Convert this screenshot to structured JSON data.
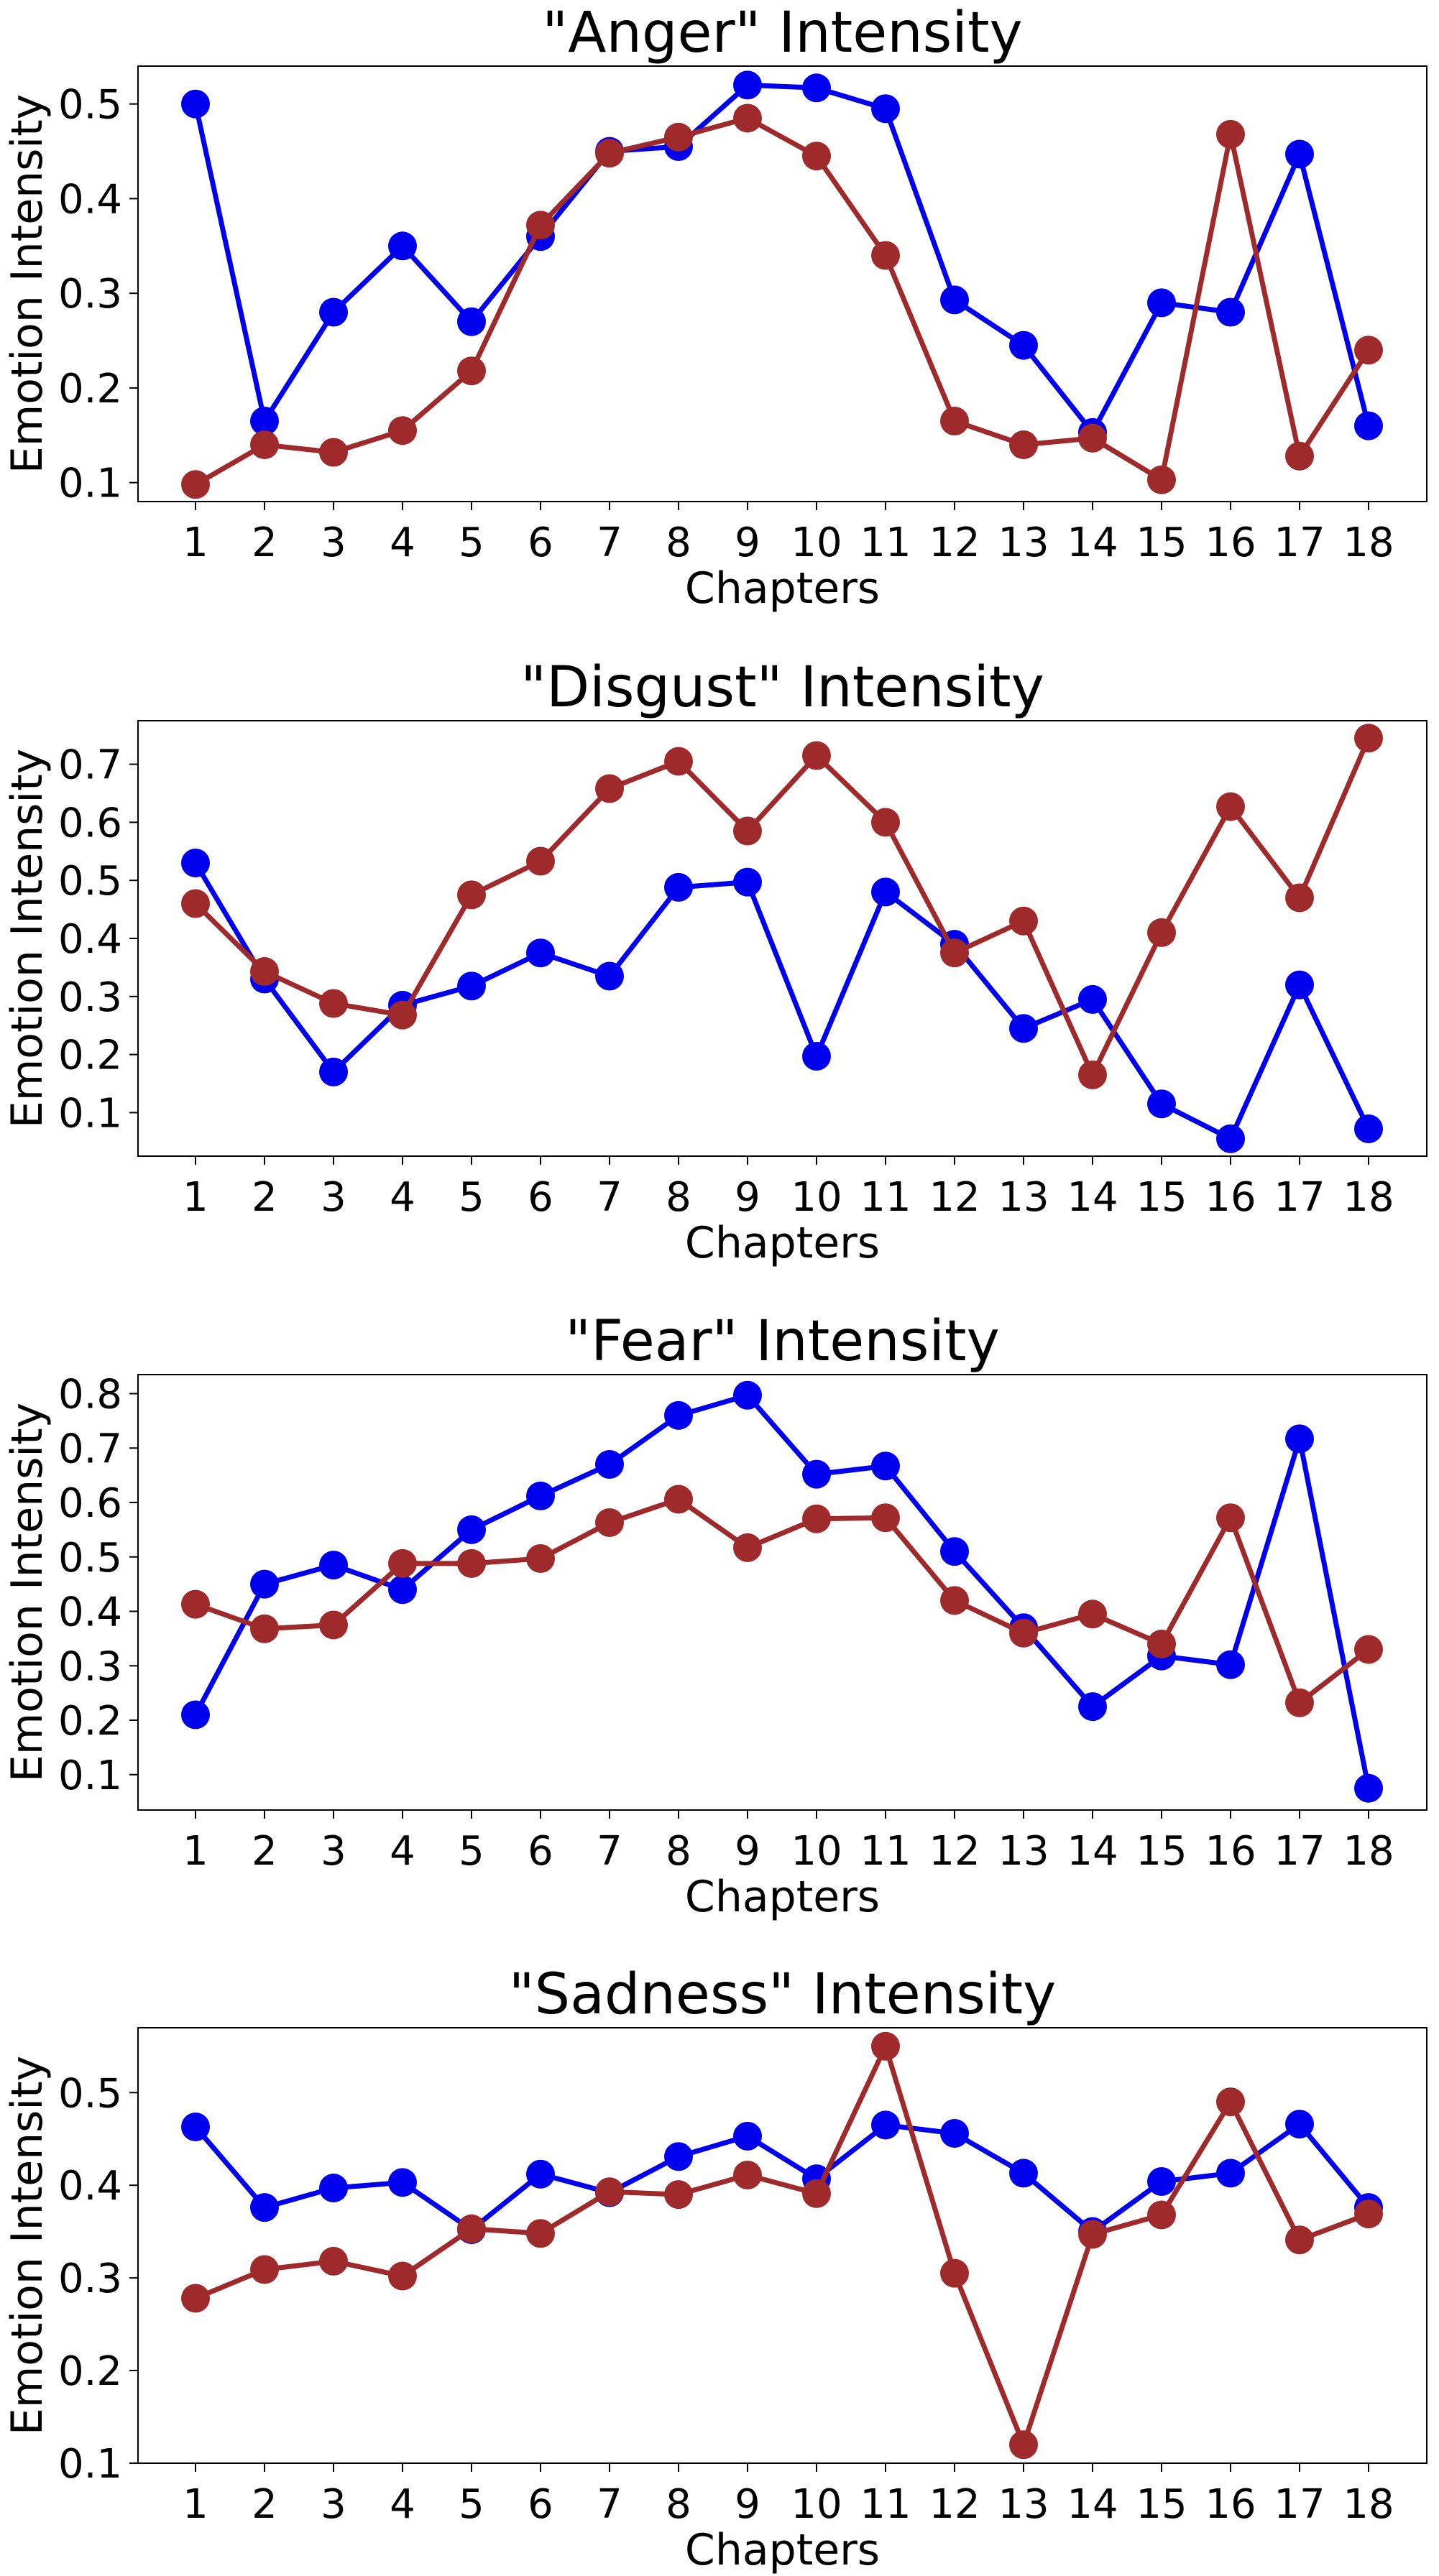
{
  "chart_data": [
    {
      "type": "line",
      "title": "\"Anger\" Intensity",
      "xlabel": "Chapters",
      "ylabel": "Emotion Intensity",
      "categories": [
        "1",
        "2",
        "3",
        "4",
        "5",
        "6",
        "7",
        "8",
        "9",
        "10",
        "11",
        "12",
        "13",
        "14",
        "15",
        "16",
        "17",
        "18"
      ],
      "ylim": [
        0.08,
        0.54
      ],
      "yticks": [
        "0.1",
        "0.2",
        "0.3",
        "0.4",
        "0.5"
      ],
      "grid": false,
      "series": [
        {
          "color": "#0000ee",
          "values": [
            0.5,
            0.165,
            0.28,
            0.35,
            0.27,
            0.36,
            0.45,
            0.455,
            0.52,
            0.517,
            0.495,
            0.293,
            0.245,
            0.153,
            0.29,
            0.28,
            0.447,
            0.16
          ]
        },
        {
          "color": "#9e2a2b",
          "values": [
            0.098,
            0.14,
            0.132,
            0.155,
            0.218,
            0.372,
            0.448,
            0.465,
            0.485,
            0.445,
            0.34,
            0.165,
            0.14,
            0.147,
            0.103,
            0.468,
            0.128,
            0.24
          ]
        }
      ]
    },
    {
      "type": "line",
      "title": "\"Disgust\" Intensity",
      "xlabel": "Chapters",
      "ylabel": "Emotion Intensity",
      "categories": [
        "1",
        "2",
        "3",
        "4",
        "5",
        "6",
        "7",
        "8",
        "9",
        "10",
        "11",
        "12",
        "13",
        "14",
        "15",
        "16",
        "17",
        "18"
      ],
      "ylim": [
        0.025,
        0.775
      ],
      "yticks": [
        "0.1",
        "0.2",
        "0.3",
        "0.4",
        "0.5",
        "0.6",
        "0.7"
      ],
      "grid": false,
      "series": [
        {
          "color": "#0000ee",
          "values": [
            0.53,
            0.33,
            0.17,
            0.285,
            0.318,
            0.375,
            0.335,
            0.488,
            0.497,
            0.197,
            0.48,
            0.39,
            0.245,
            0.295,
            0.115,
            0.055,
            0.32,
            0.072
          ]
        },
        {
          "color": "#9e2a2b",
          "values": [
            0.46,
            0.343,
            0.288,
            0.268,
            0.475,
            0.533,
            0.658,
            0.705,
            0.585,
            0.715,
            0.6,
            0.375,
            0.43,
            0.165,
            0.41,
            0.627,
            0.47,
            0.745
          ]
        }
      ]
    },
    {
      "type": "line",
      "title": "\"Fear\" Intensity",
      "xlabel": "Chapters",
      "ylabel": "Emotion Intensity",
      "categories": [
        "1",
        "2",
        "3",
        "4",
        "5",
        "6",
        "7",
        "8",
        "9",
        "10",
        "11",
        "12",
        "13",
        "14",
        "15",
        "16",
        "17",
        "18"
      ],
      "ylim": [
        0.035,
        0.835
      ],
      "yticks": [
        "0.1",
        "0.2",
        "0.3",
        "0.4",
        "0.5",
        "0.6",
        "0.7",
        "0.8"
      ],
      "grid": false,
      "series": [
        {
          "color": "#0000ee",
          "values": [
            0.21,
            0.45,
            0.485,
            0.44,
            0.55,
            0.612,
            0.67,
            0.76,
            0.797,
            0.652,
            0.667,
            0.51,
            0.37,
            0.225,
            0.318,
            0.302,
            0.717,
            0.075
          ]
        },
        {
          "color": "#9e2a2b",
          "values": [
            0.413,
            0.368,
            0.375,
            0.488,
            0.488,
            0.497,
            0.563,
            0.606,
            0.517,
            0.57,
            0.572,
            0.42,
            0.36,
            0.395,
            0.34,
            0.572,
            0.232,
            0.33
          ]
        }
      ]
    },
    {
      "type": "line",
      "title": "\"Sadness\" Intensity",
      "xlabel": "Chapters",
      "ylabel": "Emotion Intensity",
      "categories": [
        "1",
        "2",
        "3",
        "4",
        "5",
        "6",
        "7",
        "8",
        "9",
        "10",
        "11",
        "12",
        "13",
        "14",
        "15",
        "16",
        "17",
        "18"
      ],
      "ylim": [
        0.1,
        0.57
      ],
      "yticks": [
        "0.1",
        "0.2",
        "0.3",
        "0.4",
        "0.5"
      ],
      "grid": false,
      "series": [
        {
          "color": "#0000ee",
          "values": [
            0.463,
            0.376,
            0.397,
            0.403,
            0.352,
            0.412,
            0.392,
            0.431,
            0.453,
            0.407,
            0.465,
            0.456,
            0.413,
            0.35,
            0.404,
            0.413,
            0.466,
            0.376
          ]
        },
        {
          "color": "#9e2a2b",
          "values": [
            0.278,
            0.309,
            0.318,
            0.302,
            0.353,
            0.348,
            0.393,
            0.39,
            0.411,
            0.391,
            0.55,
            0.305,
            0.12,
            0.347,
            0.368,
            0.49,
            0.341,
            0.369
          ]
        }
      ]
    }
  ]
}
